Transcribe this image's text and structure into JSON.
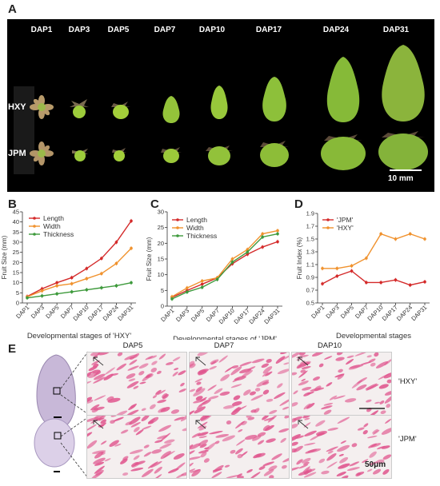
{
  "panels": {
    "A": "A",
    "B": "B",
    "C": "C",
    "D": "D",
    "E": "E"
  },
  "photo": {
    "stages": [
      "DAP1",
      "DAP3",
      "DAP5",
      "DAP7",
      "DAP10",
      "DAP17",
      "DAP24",
      "DAP31"
    ],
    "rows": [
      "HXY",
      "JPM"
    ],
    "scale_bar": "10 mm"
  },
  "colors": {
    "red": "#d42a2a",
    "orange": "#f0922e",
    "green": "#3e9a3c",
    "pink": "#e0568e"
  },
  "chart_data": [
    {
      "panel": "B",
      "type": "line",
      "categories": [
        "DAP1",
        "DAP3",
        "DAP5",
        "DAP7",
        "DAP10",
        "DAP17",
        "DAP24",
        "DAP31"
      ],
      "xlabel": "Developmental stages of 'HXY'",
      "ylabel": "Fruit Size (mm)",
      "ylim": [
        0,
        45
      ],
      "yticks": [
        0,
        5,
        10,
        15,
        20,
        25,
        30,
        35,
        40,
        45
      ],
      "series": [
        {
          "name": "Length",
          "color": "#d42a2a",
          "values": [
            3.2,
            7.0,
            10.0,
            12.5,
            17.0,
            22.0,
            30.0,
            40.5
          ]
        },
        {
          "name": "Width",
          "color": "#f0922e",
          "values": [
            3.0,
            6.0,
            8.5,
            9.5,
            12.0,
            14.5,
            19.5,
            27.0
          ]
        },
        {
          "name": "Thickness",
          "color": "#3e9a3c",
          "values": [
            2.5,
            3.5,
            4.5,
            5.5,
            6.5,
            7.5,
            8.5,
            10.0
          ]
        }
      ]
    },
    {
      "panel": "C",
      "type": "line",
      "categories": [
        "DAP1",
        "DAP3",
        "DAP5",
        "DAP7",
        "DAP10",
        "DAP17",
        "DAP24",
        "DAP31"
      ],
      "xlabel": "Developmental stages of 'JPM'",
      "ylabel": "Fruit Size (mm)",
      "ylim": [
        0,
        30
      ],
      "yticks": [
        0,
        5,
        10,
        15,
        20,
        25,
        30
      ],
      "series": [
        {
          "name": "Length",
          "color": "#d42a2a",
          "values": [
            2.8,
            5.0,
            7.0,
            9.0,
            13.5,
            16.5,
            18.8,
            20.5
          ]
        },
        {
          "name": "Width",
          "color": "#f0922e",
          "values": [
            3.0,
            5.8,
            8.0,
            9.0,
            15.0,
            18.0,
            23.0,
            24.0
          ]
        },
        {
          "name": "Thickness",
          "color": "#3e9a3c",
          "values": [
            2.3,
            4.5,
            6.0,
            8.5,
            14.0,
            17.2,
            22.0,
            23.0
          ]
        }
      ]
    },
    {
      "panel": "D",
      "type": "line",
      "categories": [
        "DAP1",
        "DAP3",
        "DAP5",
        "DAP7",
        "DAP10",
        "DAP17",
        "DAP24",
        "DAP31"
      ],
      "xlabel": "Developmental stages",
      "ylabel": "Fruit Index (%)",
      "ylim": [
        0.5,
        1.9
      ],
      "yticks": [
        0.5,
        0.7,
        0.9,
        1.1,
        1.3,
        1.5,
        1.7,
        1.9
      ],
      "series": [
        {
          "name": "'JPM'",
          "color": "#d42a2a",
          "values": [
            0.8,
            0.92,
            1.0,
            0.82,
            0.82,
            0.86,
            0.78,
            0.83
          ]
        },
        {
          "name": "'HXY'",
          "color": "#f0922e",
          "values": [
            1.04,
            1.04,
            1.08,
            1.2,
            1.58,
            1.5,
            1.58,
            1.5
          ]
        }
      ]
    }
  ],
  "histology": {
    "stages": [
      "DAP5",
      "DAP7",
      "DAP10"
    ],
    "rows": [
      "'HXY'",
      "'JPM'"
    ],
    "scale": "50μm"
  }
}
